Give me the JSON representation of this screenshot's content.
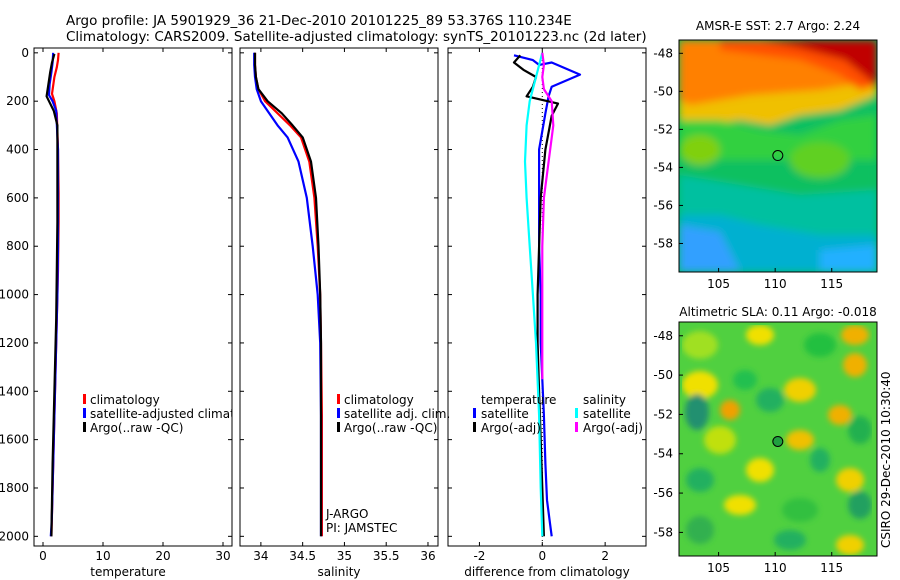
{
  "header": {
    "line1": "Argo profile: JA 5901929_36 21-Dec-2010 20101225_89 53.376S 110.234E",
    "line2": "Climatology: CARS2009. Satellite-adjusted climatology: synTS_20101223.nc (2d later)"
  },
  "colors": {
    "climatology": "#ff0000",
    "satellite": "#0000ff",
    "argo": "#000000",
    "satellite_salinity": "#00ffff",
    "argo_salinity_adj": "#ff00ff"
  },
  "chart_data": [
    {
      "type": "line",
      "name": "temperature-panel",
      "xlabel": "temperature",
      "ylabel": "",
      "xlim": [
        -1.5,
        31.5
      ],
      "ylim": [
        2040,
        -20
      ],
      "xticks": [
        0,
        10,
        20,
        30
      ],
      "yticks": [
        0,
        200,
        400,
        600,
        800,
        1000,
        1200,
        1400,
        1600,
        1800,
        2000
      ],
      "legend": [
        "climatology",
        "satellite-adjusted climatology",
        "Argo(..raw -QC)"
      ],
      "series": [
        {
          "name": "climatology",
          "color": "#ff0000",
          "x": [
            2.6,
            2.5,
            2.3,
            1.9,
            1.5,
            1.9,
            2.3,
            2.5,
            2.6,
            2.6,
            2.5,
            2.3,
            2.1,
            1.9,
            1.7,
            1.6,
            1.5,
            1.4
          ],
          "y": [
            0,
            30,
            60,
            100,
            170,
            200,
            250,
            400,
            580,
            700,
            900,
            1100,
            1300,
            1500,
            1700,
            1800,
            1900,
            2000
          ]
        },
        {
          "name": "satellite",
          "color": "#0000ff",
          "x": [
            1.7,
            1.6,
            1.4,
            1.1,
            1.0,
            1.6,
            2.2,
            2.5,
            2.5,
            2.5,
            2.4,
            2.2,
            2.0,
            1.8,
            1.6,
            1.5,
            1.4,
            1.3
          ],
          "y": [
            0,
            40,
            80,
            130,
            175,
            200,
            240,
            400,
            600,
            800,
            1000,
            1200,
            1400,
            1600,
            1800,
            1900,
            1960,
            2000
          ]
        },
        {
          "name": "argo",
          "color": "#000000",
          "x": [
            1.9,
            1.5,
            1.2,
            0.9,
            0.6,
            1.0,
            1.8,
            2.4,
            2.4,
            2.4,
            2.3,
            2.2,
            2.0,
            1.8,
            1.6,
            1.5,
            1.4
          ],
          "y": [
            5,
            40,
            80,
            130,
            180,
            200,
            240,
            300,
            500,
            700,
            900,
            1100,
            1300,
            1500,
            1700,
            1850,
            2000
          ]
        }
      ]
    },
    {
      "type": "line",
      "name": "salinity-panel",
      "xlabel": "salinity",
      "xlim": [
        33.75,
        36.12
      ],
      "ylim": [
        2040,
        -20
      ],
      "xticks": [
        34,
        34.5,
        35,
        35.5,
        36
      ],
      "legend": [
        "climatology",
        "satellite adj. clim.",
        "Argo(..raw -QC)"
      ],
      "annotation": [
        "J-ARGO",
        "PI: JAMSTEC"
      ],
      "series": [
        {
          "name": "climatology",
          "color": "#ff0000",
          "x": [
            33.93,
            33.93,
            33.94,
            33.97,
            34.05,
            34.2,
            34.35,
            34.48,
            34.58,
            34.64,
            34.68,
            34.71,
            34.72,
            34.73,
            34.73,
            34.73
          ],
          "y": [
            0,
            50,
            100,
            150,
            200,
            250,
            300,
            350,
            450,
            600,
            800,
            1000,
            1200,
            1500,
            1800,
            2000
          ]
        },
        {
          "name": "satellite",
          "color": "#0000ff",
          "x": [
            33.92,
            33.92,
            33.93,
            33.95,
            34.0,
            34.1,
            34.2,
            34.32,
            34.45,
            34.55,
            34.62,
            34.68,
            34.71,
            34.72,
            34.72,
            34.72
          ],
          "y": [
            0,
            50,
            100,
            150,
            200,
            250,
            300,
            350,
            450,
            600,
            800,
            1000,
            1200,
            1500,
            1800,
            2000
          ]
        },
        {
          "name": "argo",
          "color": "#000000",
          "x": [
            33.93,
            33.93,
            33.94,
            33.97,
            34.08,
            34.25,
            34.38,
            34.5,
            34.6,
            34.66,
            34.69,
            34.71,
            34.72,
            34.72,
            34.72,
            34.72
          ],
          "y": [
            0,
            50,
            100,
            150,
            200,
            250,
            300,
            350,
            450,
            600,
            800,
            1000,
            1200,
            1500,
            1800,
            2000
          ]
        }
      ]
    },
    {
      "type": "line",
      "name": "difference-panel",
      "xlabel": "difference from climatology",
      "xlim": [
        -3.0,
        3.3
      ],
      "ylim": [
        2040,
        -20
      ],
      "xticks": [
        -2,
        0,
        2
      ],
      "legend": {
        "temperature_heading": "temperature",
        "salinity_heading": "salinity",
        "t_satellite": "satellite",
        "t_argo": "Argo(-adj)",
        "s_satellite": "satellite",
        "s_argo": "Argo(-adj)"
      },
      "series": [
        {
          "name": "temperature satellite",
          "color": "#0000ff",
          "x": [
            -0.9,
            -0.3,
            -0.1,
            0.3,
            1.2,
            0.3,
            0.2,
            0.1,
            -0.1,
            -0.1,
            -0.1,
            -0.05,
            -0.05,
            0.05,
            0.1,
            0.15,
            0.25,
            0.3
          ],
          "y": [
            10,
            30,
            50,
            40,
            90,
            140,
            180,
            250,
            400,
            600,
            800,
            1000,
            1200,
            1500,
            1700,
            1850,
            1950,
            2000
          ]
        },
        {
          "name": "temperature argo",
          "color": "#000000",
          "x": [
            -0.7,
            -0.9,
            -0.6,
            -0.2,
            -0.3,
            -0.5,
            0.5,
            0.3,
            0.1,
            -0.05,
            -0.1,
            -0.15,
            -0.15,
            -0.1,
            -0.05,
            0.0,
            0.05
          ],
          "y": [
            10,
            40,
            70,
            100,
            140,
            180,
            210,
            260,
            400,
            600,
            800,
            1000,
            1200,
            1400,
            1600,
            1800,
            2000
          ]
        },
        {
          "name": "salinity satellite",
          "color": "#00ffff",
          "x": [
            0.0,
            -0.2,
            -0.4,
            -0.5,
            -0.55,
            -0.5,
            -0.4,
            -0.3,
            -0.2,
            -0.1,
            -0.05,
            0.0
          ],
          "y": [
            0,
            100,
            200,
            300,
            450,
            600,
            800,
            1000,
            1200,
            1500,
            1800,
            2000
          ]
        },
        {
          "name": "salinity argo",
          "color": "#ff00ff",
          "x": [
            0.0,
            0.05,
            0.0,
            0.05,
            0.3,
            0.35,
            0.2,
            0.05,
            0.0,
            0.0,
            0.0,
            0.0
          ],
          "y": [
            0,
            50,
            100,
            150,
            200,
            300,
            450,
            600,
            800,
            1000,
            1200,
            1350
          ]
        }
      ]
    },
    {
      "type": "heatmap",
      "name": "sst-map",
      "title": "AMSR-E SST: 2.7  Argo: 2.24",
      "xticks": [
        105,
        110,
        115
      ],
      "yticks": [
        -48,
        -50,
        -52,
        -54,
        -56,
        -58
      ],
      "xlim": [
        101.5,
        119
      ],
      "ylim": [
        -59.5,
        -47.3
      ],
      "marker": {
        "lon": 110.234,
        "lat": -53.376
      }
    },
    {
      "type": "heatmap",
      "name": "sla-map",
      "title": "Altimetric SLA: 0.11  Argo: -0.018",
      "xticks": [
        105,
        110,
        115
      ],
      "yticks": [
        -48,
        -50,
        -52,
        -54,
        -56,
        -58
      ],
      "xlim": [
        101.5,
        119
      ],
      "ylim": [
        -59.2,
        -47.3
      ],
      "marker": {
        "lon": 110.234,
        "lat": -53.376
      }
    }
  ],
  "credit": "CSIRO 29-Dec-2010 10:30:40"
}
